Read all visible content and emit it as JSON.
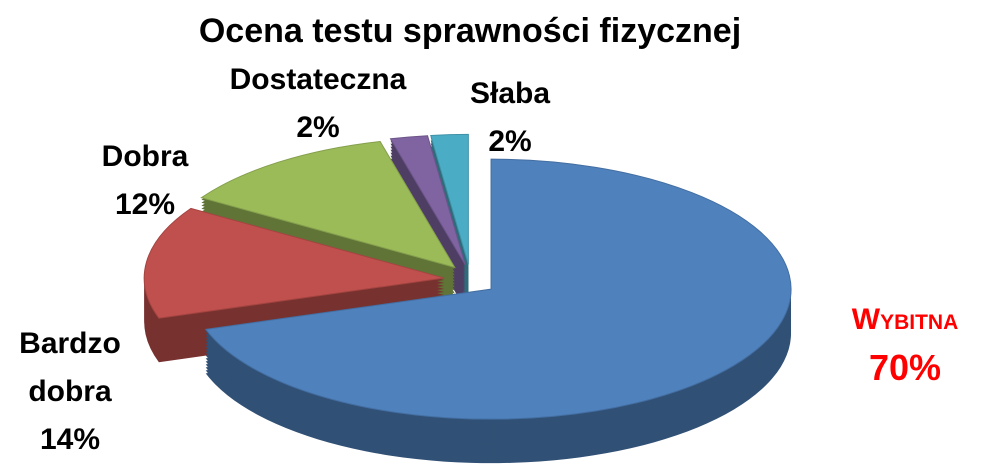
{
  "chart_data": {
    "type": "pie",
    "title": "Ocena testu sprawności fizycznej",
    "categories": [
      "Wybitna",
      "Bardzo dobra",
      "Dobra",
      "Dostateczna",
      "Słaba"
    ],
    "values": [
      70,
      14,
      12,
      2,
      2
    ],
    "value_labels": [
      "70%",
      "14%",
      "12%",
      "2%",
      "2%"
    ],
    "colors": [
      "#4f81bd",
      "#c0504d",
      "#9bbb59",
      "#8064a2",
      "#4bacc6"
    ]
  }
}
